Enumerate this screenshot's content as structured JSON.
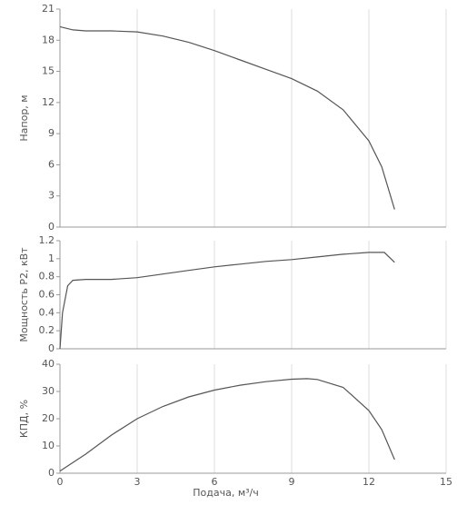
{
  "chart_data": [
    {
      "type": "line",
      "ylabel": "Напор, м",
      "color": "#555555",
      "grid": true,
      "show_xtick_labels": false,
      "x": [
        0,
        0.5,
        1,
        2,
        3,
        4,
        5,
        6,
        7,
        8,
        9,
        10,
        11,
        12,
        12.5,
        13
      ],
      "values": [
        19.3,
        19.0,
        18.9,
        18.9,
        18.8,
        18.4,
        17.8,
        17.0,
        16.1,
        15.2,
        14.3,
        13.1,
        11.3,
        8.3,
        5.8,
        1.7
      ],
      "xlim": [
        0,
        15
      ],
      "xticks": [
        0,
        3,
        6,
        9,
        12,
        15
      ],
      "ylim": [
        0,
        21
      ],
      "yticks": [
        0,
        3,
        6,
        9,
        12,
        15,
        18,
        21
      ]
    },
    {
      "type": "line",
      "ylabel": "Мощность P2, кВт",
      "color": "#555555",
      "grid": true,
      "show_xtick_labels": false,
      "x": [
        0,
        0.1,
        0.3,
        0.5,
        1,
        2,
        3,
        4,
        5,
        6,
        7,
        8,
        9,
        10,
        11,
        12,
        12.6,
        13
      ],
      "values": [
        0,
        0.4,
        0.7,
        0.76,
        0.77,
        0.77,
        0.79,
        0.83,
        0.87,
        0.91,
        0.94,
        0.97,
        0.99,
        1.02,
        1.05,
        1.07,
        1.07,
        0.96
      ],
      "xlim": [
        0,
        15
      ],
      "xticks": [
        0,
        3,
        6,
        9,
        12,
        15
      ],
      "ylim": [
        0,
        1.2
      ],
      "yticks": [
        0,
        0.2,
        0.4,
        0.6,
        0.8,
        1,
        1.2
      ]
    },
    {
      "type": "line",
      "ylabel": "КПД, %",
      "xlabel": "Подача, м³/ч",
      "color": "#555555",
      "grid": true,
      "show_xtick_labels": true,
      "x": [
        0,
        1,
        2,
        3,
        4,
        5,
        6,
        7,
        8,
        9,
        9.6,
        10,
        11,
        12,
        12.5,
        13
      ],
      "values": [
        0.8,
        7,
        14,
        20,
        24.5,
        28,
        30.5,
        32.3,
        33.6,
        34.5,
        34.7,
        34.4,
        31.5,
        23,
        16,
        5
      ],
      "xlim": [
        0,
        15
      ],
      "xticks": [
        0,
        3,
        6,
        9,
        12,
        15
      ],
      "ylim": [
        0,
        40
      ],
      "yticks": [
        0,
        10,
        20,
        30,
        40
      ]
    }
  ]
}
